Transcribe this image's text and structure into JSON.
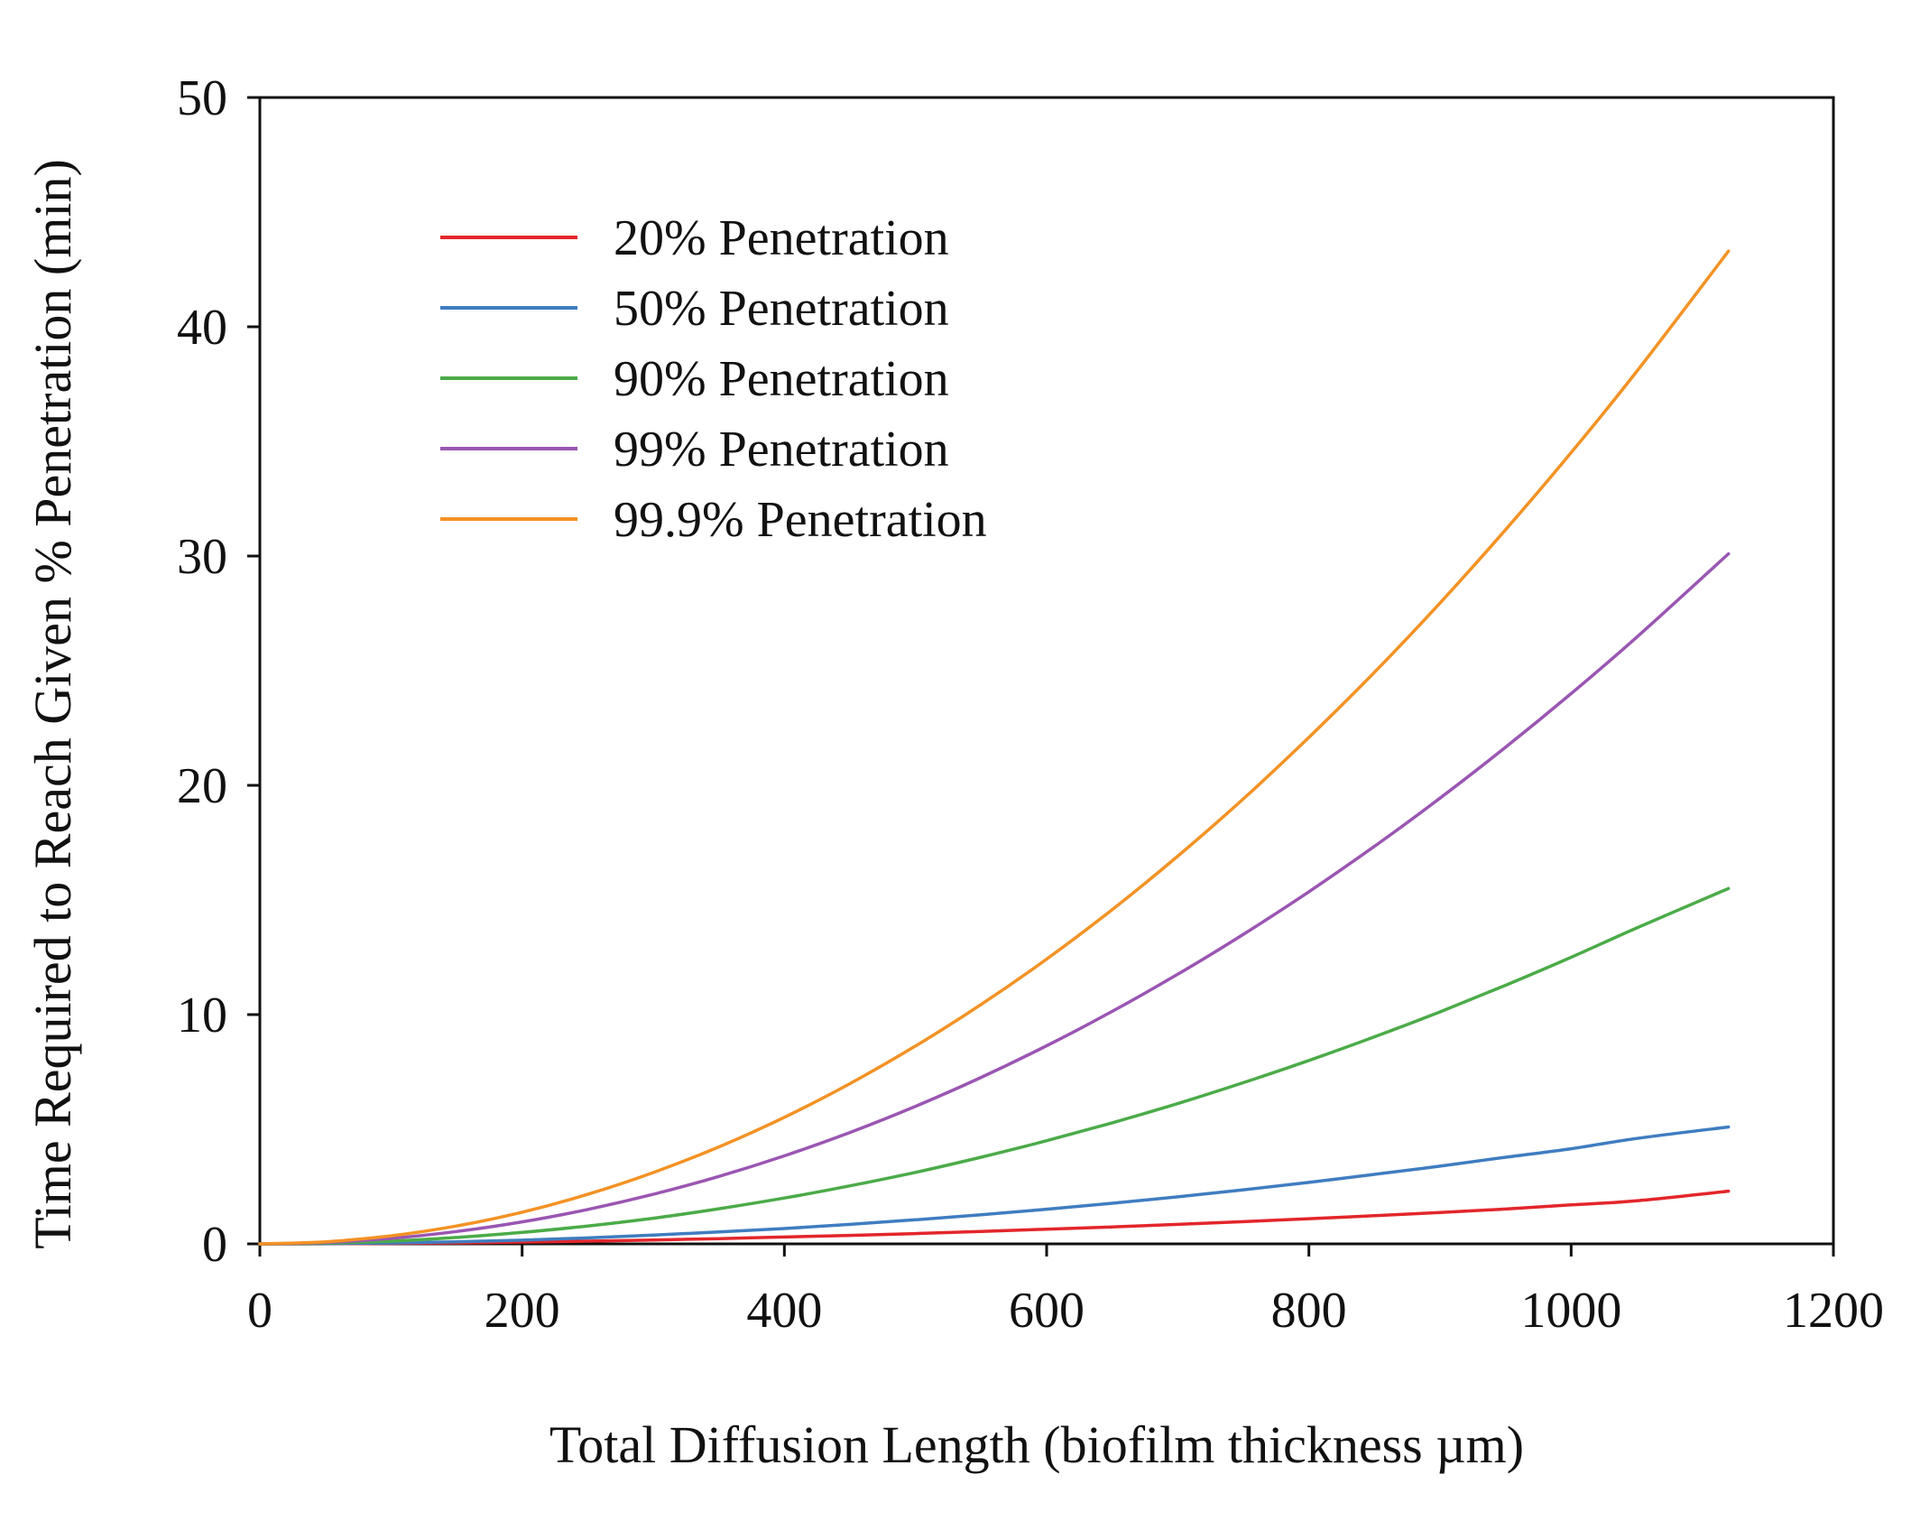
{
  "chart_data": {
    "type": "line",
    "title": "",
    "xlabel": "Total Diffusion Length (biofilm thickness µm)",
    "ylabel": "Time Required to Reach Given % Penetration (min)",
    "xlim": [
      0,
      1200
    ],
    "ylim": [
      0,
      50
    ],
    "xticks": [
      0,
      200,
      400,
      600,
      800,
      1000,
      1200
    ],
    "xtick_labels": [
      "0",
      "200",
      "400",
      "600",
      "800",
      "1000",
      "1200"
    ],
    "yticks": [
      0,
      10,
      20,
      30,
      40,
      50
    ],
    "ytick_labels": [
      "0",
      "10",
      "20",
      "30",
      "40",
      "50"
    ],
    "grid": false,
    "legend_position": "top-left",
    "x": [
      0,
      50,
      100,
      150,
      200,
      250,
      300,
      350,
      400,
      450,
      500,
      550,
      600,
      650,
      700,
      750,
      800,
      850,
      900,
      950,
      1000,
      1050,
      1120
    ],
    "series": [
      {
        "name": "20% Penetration",
        "color": "#e3262b",
        "values": [
          0,
          0.005,
          0.02,
          0.04,
          0.08,
          0.12,
          0.17,
          0.23,
          0.3,
          0.37,
          0.45,
          0.54,
          0.64,
          0.74,
          0.85,
          0.97,
          1.1,
          1.23,
          1.37,
          1.52,
          1.7,
          1.88,
          2.3
        ]
      },
      {
        "name": "50% Penetration",
        "color": "#3f7dc0",
        "values": [
          0,
          0.01,
          0.04,
          0.09,
          0.16,
          0.26,
          0.38,
          0.52,
          0.67,
          0.85,
          1.05,
          1.27,
          1.51,
          1.77,
          2.05,
          2.36,
          2.68,
          3.03,
          3.39,
          3.78,
          4.15,
          4.6,
          5.1
        ]
      },
      {
        "name": "90% Penetration",
        "color": "#4bab48",
        "values": [
          0,
          0.03,
          0.12,
          0.28,
          0.5,
          0.78,
          1.12,
          1.53,
          2.0,
          2.53,
          3.12,
          3.78,
          4.5,
          5.28,
          6.12,
          7.03,
          8.0,
          9.03,
          10.12,
          11.28,
          12.5,
          13.78,
          15.5
        ]
      },
      {
        "name": "99% Penetration",
        "color": "#9a56b2",
        "values": [
          0,
          0.06,
          0.24,
          0.54,
          0.96,
          1.5,
          2.16,
          2.94,
          3.84,
          4.86,
          6.0,
          7.26,
          8.64,
          10.14,
          11.76,
          13.5,
          15.36,
          17.34,
          19.44,
          21.66,
          24.0,
          26.46,
          30.1
        ]
      },
      {
        "name": "99.9% Penetration",
        "color": "#f39224",
        "values": [
          0,
          0.09,
          0.35,
          0.78,
          1.38,
          2.16,
          3.11,
          4.23,
          5.52,
          6.99,
          8.63,
          10.44,
          12.42,
          14.58,
          16.91,
          19.41,
          22.09,
          24.93,
          27.95,
          31.15,
          34.51,
          38.05,
          43.3
        ]
      }
    ]
  }
}
